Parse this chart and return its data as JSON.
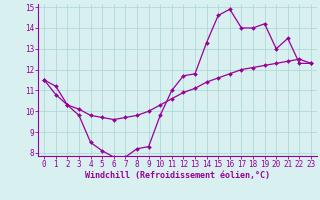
{
  "xlabel": "Windchill (Refroidissement éolien,°C)",
  "x": [
    0,
    1,
    2,
    3,
    4,
    5,
    6,
    7,
    8,
    9,
    10,
    11,
    12,
    13,
    14,
    15,
    16,
    17,
    18,
    19,
    20,
    21,
    22,
    23
  ],
  "curve1": [
    11.5,
    11.2,
    10.3,
    9.8,
    8.5,
    8.1,
    7.8,
    7.8,
    8.2,
    8.3,
    9.8,
    11.0,
    11.7,
    11.8,
    13.3,
    14.6,
    14.9,
    14.0,
    14.0,
    14.2,
    13.0,
    13.5,
    12.3,
    12.3
  ],
  "curve2": [
    11.5,
    10.8,
    10.3,
    10.1,
    9.8,
    9.7,
    9.6,
    9.7,
    9.8,
    10.0,
    10.3,
    10.6,
    10.9,
    11.1,
    11.4,
    11.6,
    11.8,
    12.0,
    12.1,
    12.2,
    12.3,
    12.4,
    12.5,
    12.3
  ],
  "line_color": "#990099",
  "bg_color": "#d8f0f0",
  "grid_color": "#aad4d4",
  "ylim": [
    8,
    15
  ],
  "xlim": [
    -0.5,
    23.5
  ],
  "yticks": [
    8,
    9,
    10,
    11,
    12,
    13,
    14,
    15
  ],
  "xticks": [
    0,
    1,
    2,
    3,
    4,
    5,
    6,
    7,
    8,
    9,
    10,
    11,
    12,
    13,
    14,
    15,
    16,
    17,
    18,
    19,
    20,
    21,
    22,
    23
  ],
  "xlabel_fontsize": 6,
  "tick_fontsize": 5.5,
  "marker_size": 2,
  "linewidth": 0.9
}
